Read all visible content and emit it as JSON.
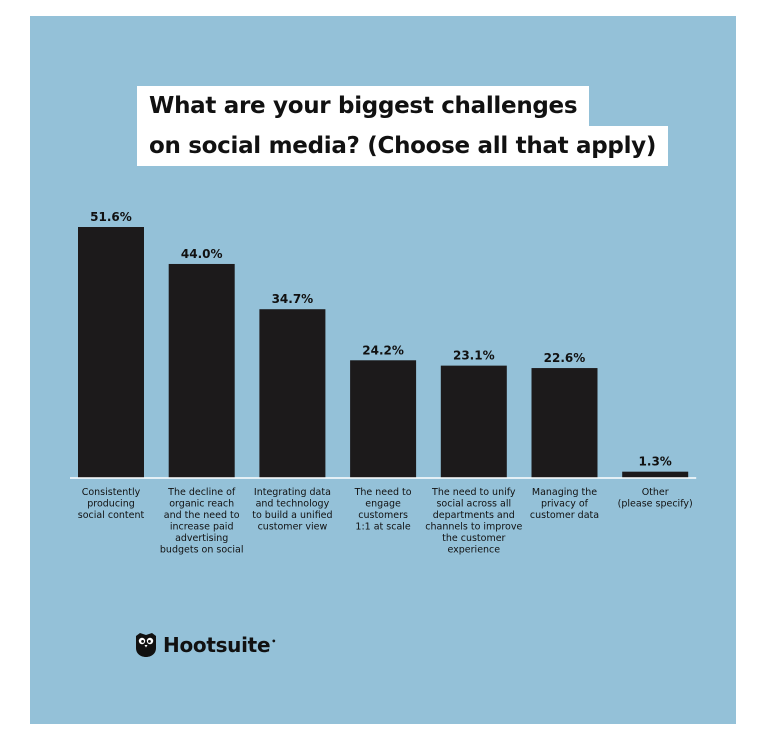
{
  "chart_data": {
    "type": "bar",
    "title_lines": [
      "What are your biggest challenges",
      "on social media? (Choose all that apply)"
    ],
    "categories": [
      [
        "Consistently",
        "producing",
        "social content"
      ],
      [
        "The decline of",
        "organic reach",
        "and the need to",
        "increase paid",
        "advertising",
        "budgets on social"
      ],
      [
        "Integrating data",
        "and technology",
        "to build a unified",
        "customer view"
      ],
      [
        "The need to",
        "engage",
        "customers",
        "1:1 at scale"
      ],
      [
        "The need to unify",
        "social across all",
        "departments and",
        "channels to improve",
        "the customer",
        "experience"
      ],
      [
        "Managing the",
        "privacy of",
        "customer data"
      ],
      [
        "Other",
        "(please specify)"
      ]
    ],
    "values": [
      51.6,
      44.0,
      34.7,
      24.2,
      23.1,
      22.6,
      1.3
    ],
    "value_labels": [
      "51.6%",
      "44.0%",
      "34.7%",
      "24.2%",
      "23.1%",
      "22.6%",
      "1.3%"
    ],
    "ylim": [
      0,
      51.6
    ],
    "grid": false,
    "colors": {
      "background": "#94c1d8",
      "bar": "#1c1a1b",
      "baseline": "#ffffff",
      "text": "#111111"
    }
  },
  "brand": {
    "name": "Hootsuite",
    "mark": "•",
    "icon": "owl-icon"
  }
}
